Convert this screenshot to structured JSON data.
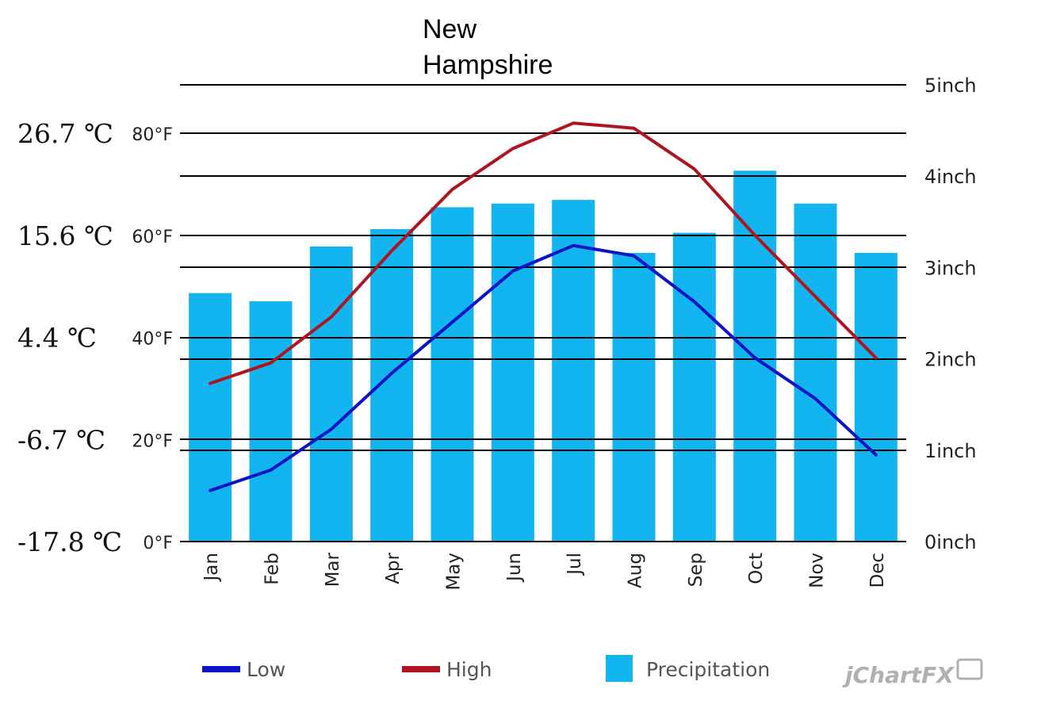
{
  "chart_data": {
    "type": "bar",
    "title_lines": [
      "New",
      "Hampshire"
    ],
    "categories": [
      "Jan",
      "Feb",
      "Mar",
      "Apr",
      "May",
      "Jun",
      "Jul",
      "Aug",
      "Sep",
      "Oct",
      "Nov",
      "Dec"
    ],
    "series": [
      {
        "name": "Precipitation",
        "type": "bar",
        "axis": "right",
        "color": "#12b5f0",
        "values": [
          2.72,
          2.63,
          3.23,
          3.42,
          3.66,
          3.7,
          3.74,
          3.16,
          3.38,
          4.06,
          3.7,
          3.16
        ]
      },
      {
        "name": "Low",
        "type": "line",
        "axis": "left",
        "color": "#0a14c8",
        "values": [
          10,
          14,
          22,
          33,
          43,
          53,
          58,
          56,
          47,
          36,
          28,
          17
        ]
      },
      {
        "name": "High",
        "type": "line",
        "axis": "left",
        "color": "#b0141e",
        "values": [
          31,
          35,
          44,
          57,
          69,
          77,
          82,
          81,
          73,
          60,
          48,
          36
        ]
      }
    ],
    "left_axis": {
      "ylim": [
        0,
        80
      ],
      "ticks": [
        "0°F",
        "20°F",
        "40°F",
        "60°F",
        "80°F"
      ],
      "tick_values": [
        0,
        20,
        40,
        60,
        80
      ]
    },
    "right_axis": {
      "ylim": [
        0,
        5
      ],
      "ticks": [
        "0inch",
        "1inch",
        "2inch",
        "3inch",
        "4inch",
        "5inch"
      ],
      "tick_values": [
        0,
        1,
        2,
        3,
        4,
        5
      ]
    },
    "celsius_labels": [
      "26.7 ℃",
      "15.6 ℃",
      "4.4 ℃",
      "-6.7 ℃",
      "-17.8 ℃"
    ],
    "celsius_values_f": [
      80,
      60,
      40,
      20,
      0
    ],
    "grid": true,
    "legend_position": "bottom",
    "legend": [
      "Low",
      "High",
      "Precipitation"
    ]
  },
  "watermark": "jChartFX"
}
